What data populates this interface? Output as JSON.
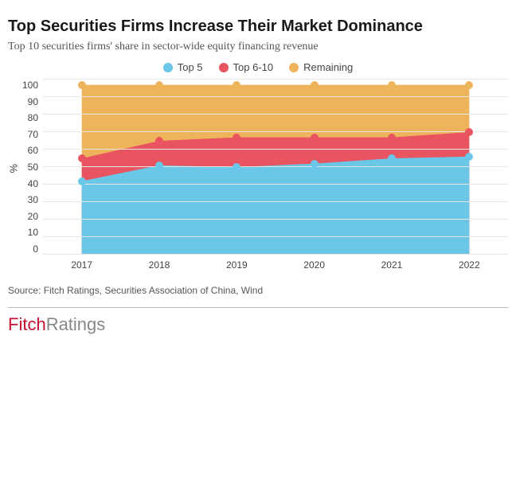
{
  "title": "Top Securities Firms Increase Their Market Dominance",
  "subtitle": "Top 10 securities firms' share in sector-wide equity financing revenue",
  "source": "Source: Fitch Ratings, Securities Association of China, Wind",
  "brand": {
    "first": "Fitch",
    "second": "Ratings"
  },
  "chart": {
    "type": "stacked-area",
    "ylabel": "%",
    "ylim": [
      0,
      100
    ],
    "ytick_step": 10,
    "categories": [
      "2017",
      "2018",
      "2019",
      "2020",
      "2021",
      "2022"
    ],
    "series": [
      {
        "name": "Top 5",
        "color": "#6ac7e8",
        "values": [
          42,
          51,
          50,
          52,
          55,
          56
        ]
      },
      {
        "name": "Top 6-10",
        "color": "#e8545f",
        "values": [
          55,
          65,
          67,
          67,
          67,
          70
        ]
      },
      {
        "name": "Remaining",
        "color": "#eeb45c",
        "values": [
          97,
          97,
          97,
          97,
          97,
          97
        ]
      }
    ],
    "marker_radius": 5,
    "background_color": "#ffffff",
    "grid_color": "#e6e6e6",
    "axis_fontsize": 12,
    "title_fontsize": 20,
    "subtitle_fontsize": 14
  }
}
